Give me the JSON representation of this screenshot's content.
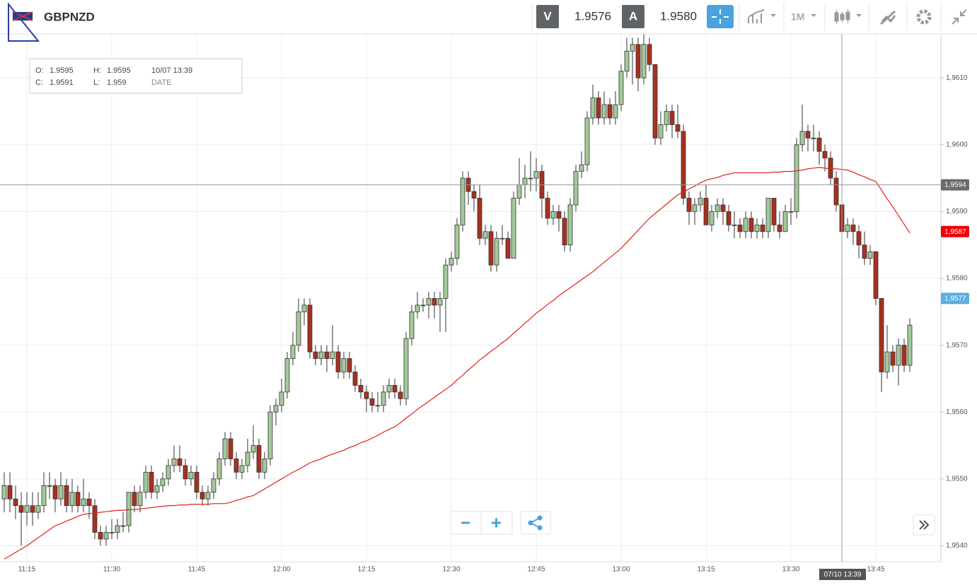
{
  "header": {
    "symbol": "GBPNZD",
    "bid_label": "V",
    "bid": "1.9576",
    "ask_label": "A",
    "ask": "1.9580",
    "period": "1M"
  },
  "info": {
    "open_label": "O:",
    "open": "1.9595",
    "high_label": "H:",
    "high": "1.9595",
    "time": "10/07 13:39",
    "close_label": "C:",
    "close": "1.9591",
    "low_label": "L:",
    "low": "1.959",
    "date_label": "DATE"
  },
  "chart_data": {
    "type": "candlestick",
    "categories": [
      null,
      null,
      null,
      null,
      "11:15",
      null,
      null,
      null,
      null,
      null,
      null,
      null,
      null,
      null,
      null,
      null,
      null,
      null,
      null,
      "11:30",
      null,
      null,
      null,
      null,
      null,
      null,
      null,
      null,
      null,
      null,
      null,
      null,
      null,
      null,
      "11:45",
      null,
      null,
      null,
      null,
      null,
      null,
      null,
      null,
      null,
      null,
      null,
      null,
      null,
      null,
      "12:00",
      null,
      null,
      null,
      null,
      null,
      null,
      null,
      null,
      null,
      null,
      null,
      null,
      null,
      null,
      "12:15",
      null,
      null,
      null,
      null,
      null,
      null,
      null,
      null,
      null,
      null,
      null,
      null,
      null,
      null,
      "12:30",
      null,
      null,
      null,
      null,
      null,
      null,
      null,
      null,
      null,
      null,
      null,
      null,
      null,
      null,
      "12:45",
      null,
      null,
      null,
      null,
      null,
      null,
      null,
      null,
      null,
      null,
      null,
      null,
      null,
      null,
      "13:00",
      null,
      null,
      null,
      null,
      null,
      null,
      null,
      null,
      null,
      null,
      null,
      null,
      null,
      null,
      "13:15",
      null,
      null,
      null,
      null,
      null,
      null,
      null,
      null,
      null,
      null,
      null,
      null,
      null,
      null,
      "13:30",
      null,
      null,
      null,
      null,
      null,
      null,
      null,
      null,
      null,
      null,
      null,
      null,
      null,
      null,
      "13:45",
      null,
      null,
      null,
      null,
      null,
      null
    ],
    "ohlc": [
      [
        1.9547,
        1.9551,
        1.9545,
        1.9549
      ],
      [
        1.9549,
        1.9551,
        1.9545,
        1.9547
      ],
      [
        1.9547,
        1.9549,
        1.9544,
        1.9546
      ],
      [
        1.9546,
        1.9548,
        1.954,
        1.9545
      ],
      [
        1.9545,
        1.9548,
        1.9543,
        1.9546
      ],
      [
        1.9546,
        1.9548,
        1.9543,
        1.9545
      ],
      [
        1.9545,
        1.9548,
        1.9544,
        1.9546
      ],
      [
        1.9546,
        1.9551,
        1.9545,
        1.9549
      ],
      [
        1.9549,
        1.9551,
        1.9547,
        1.9549
      ],
      [
        1.9549,
        1.955,
        1.9545,
        1.9547
      ],
      [
        1.9547,
        1.9551,
        1.9546,
        1.9549
      ],
      [
        1.9549,
        1.955,
        1.9545,
        1.9546
      ],
      [
        1.9546,
        1.955,
        1.9545,
        1.9548
      ],
      [
        1.9548,
        1.9549,
        1.9545,
        1.9546
      ],
      [
        1.9546,
        1.955,
        1.9545,
        1.9547
      ],
      [
        1.9547,
        1.9548,
        1.9544,
        1.9546
      ],
      [
        1.9546,
        1.9547,
        1.9541,
        1.9542
      ],
      [
        1.9542,
        1.9543,
        1.954,
        1.9541
      ],
      [
        1.9541,
        1.9543,
        1.954,
        1.9542
      ],
      [
        1.9542,
        1.9544,
        1.9541,
        1.9542
      ],
      [
        1.9542,
        1.9544,
        1.9541,
        1.9543
      ],
      [
        1.9543,
        1.9545,
        1.9542,
        1.9543
      ],
      [
        1.9543,
        1.9548,
        1.9542,
        1.9548
      ],
      [
        1.9548,
        1.9549,
        1.9545,
        1.9546
      ],
      [
        1.9546,
        1.9549,
        1.9545,
        1.9548
      ],
      [
        1.9548,
        1.9552,
        1.9547,
        1.9551
      ],
      [
        1.9551,
        1.9552,
        1.9547,
        1.9548
      ],
      [
        1.9548,
        1.955,
        1.9547,
        1.9549
      ],
      [
        1.9549,
        1.9551,
        1.9548,
        1.955
      ],
      [
        1.955,
        1.9553,
        1.9549,
        1.9552
      ],
      [
        1.9552,
        1.9555,
        1.9551,
        1.9553
      ],
      [
        1.9553,
        1.9555,
        1.9551,
        1.9552
      ],
      [
        1.9552,
        1.9553,
        1.9549,
        1.955
      ],
      [
        1.955,
        1.9552,
        1.9549,
        1.9551
      ],
      [
        1.9551,
        1.9552,
        1.9547,
        1.9548
      ],
      [
        1.9548,
        1.9549,
        1.9546,
        1.9547
      ],
      [
        1.9547,
        1.9549,
        1.9546,
        1.9548
      ],
      [
        1.9548,
        1.9551,
        1.9547,
        1.955
      ],
      [
        1.955,
        1.9554,
        1.9549,
        1.9553
      ],
      [
        1.9553,
        1.9557,
        1.9552,
        1.9556
      ],
      [
        1.9556,
        1.9557,
        1.9552,
        1.9553
      ],
      [
        1.9553,
        1.9554,
        1.955,
        1.9551
      ],
      [
        1.9551,
        1.9553,
        1.955,
        1.9552
      ],
      [
        1.9552,
        1.9556,
        1.9551,
        1.9554
      ],
      [
        1.9554,
        1.9558,
        1.9553,
        1.9555
      ],
      [
        1.9555,
        1.9556,
        1.955,
        1.9551
      ],
      [
        1.9551,
        1.9554,
        1.955,
        1.9553
      ],
      [
        1.9553,
        1.9561,
        1.9552,
        1.956
      ],
      [
        1.956,
        1.9562,
        1.9558,
        1.9561
      ],
      [
        1.9561,
        1.9565,
        1.956,
        1.9563
      ],
      [
        1.9563,
        1.9569,
        1.9562,
        1.9568
      ],
      [
        1.9568,
        1.9572,
        1.9567,
        1.957
      ],
      [
        1.957,
        1.9577,
        1.9569,
        1.9575
      ],
      [
        1.9575,
        1.9577,
        1.9573,
        1.9576
      ],
      [
        1.9576,
        1.9577,
        1.9568,
        1.9569
      ],
      [
        1.9569,
        1.957,
        1.9567,
        1.9568
      ],
      [
        1.9568,
        1.957,
        1.9567,
        1.9569
      ],
      [
        1.9569,
        1.957,
        1.9566,
        1.9568
      ],
      [
        1.9568,
        1.9573,
        1.9567,
        1.9569
      ],
      [
        1.9569,
        1.957,
        1.9565,
        1.9566
      ],
      [
        1.9566,
        1.9569,
        1.9565,
        1.9568
      ],
      [
        1.9568,
        1.9569,
        1.9565,
        1.9566
      ],
      [
        1.9566,
        1.9567,
        1.9563,
        1.9564
      ],
      [
        1.9564,
        1.9565,
        1.9562,
        1.9563
      ],
      [
        1.9563,
        1.9564,
        1.956,
        1.9562
      ],
      [
        1.9562,
        1.9563,
        1.956,
        1.9561
      ],
      [
        1.9561,
        1.9563,
        1.956,
        1.9561
      ],
      [
        1.9561,
        1.9564,
        1.956,
        1.9563
      ],
      [
        1.9563,
        1.9565,
        1.9562,
        1.9564
      ],
      [
        1.9564,
        1.9565,
        1.9562,
        1.9563
      ],
      [
        1.9563,
        1.9564,
        1.9561,
        1.9562
      ],
      [
        1.9562,
        1.9572,
        1.9561,
        1.9571
      ],
      [
        1.9571,
        1.9576,
        1.957,
        1.9575
      ],
      [
        1.9575,
        1.9578,
        1.9574,
        1.9576
      ],
      [
        1.9576,
        1.9577,
        1.9575,
        1.9576
      ],
      [
        1.9576,
        1.9578,
        1.9574,
        1.9577
      ],
      [
        1.9577,
        1.9578,
        1.9574,
        1.9576
      ],
      [
        1.9576,
        1.9578,
        1.9572,
        1.9577
      ],
      [
        1.9577,
        1.9583,
        1.9572,
        1.9582
      ],
      [
        1.9582,
        1.9584,
        1.9581,
        1.9583
      ],
      [
        1.9583,
        1.9589,
        1.9582,
        1.9588
      ],
      [
        1.9588,
        1.9596,
        1.9587,
        1.9595
      ],
      [
        1.9595,
        1.9596,
        1.9591,
        1.9593
      ],
      [
        1.9593,
        1.9594,
        1.959,
        1.9592
      ],
      [
        1.9592,
        1.9594,
        1.9585,
        1.9586
      ],
      [
        1.9586,
        1.9588,
        1.9585,
        1.9587
      ],
      [
        1.9587,
        1.9588,
        1.9581,
        1.9582
      ],
      [
        1.9582,
        1.9587,
        1.9581,
        1.9586
      ],
      [
        1.9586,
        1.9588,
        1.9585,
        1.9586
      ],
      [
        1.9586,
        1.9587,
        1.9583,
        1.9583
      ],
      [
        1.9583,
        1.9593,
        1.9583,
        1.9592
      ],
      [
        1.9592,
        1.9598,
        1.9591,
        1.9594
      ],
      [
        1.9594,
        1.9597,
        1.9592,
        1.9595
      ],
      [
        1.9595,
        1.9599,
        1.9593,
        1.9595
      ],
      [
        1.9595,
        1.9598,
        1.9593,
        1.9596
      ],
      [
        1.9596,
        1.9597,
        1.9589,
        1.9592
      ],
      [
        1.9592,
        1.9593,
        1.9588,
        1.9589
      ],
      [
        1.9589,
        1.9591,
        1.9588,
        1.959
      ],
      [
        1.959,
        1.9591,
        1.9587,
        1.9589
      ],
      [
        1.9589,
        1.959,
        1.9584,
        1.9585
      ],
      [
        1.9585,
        1.9592,
        1.9584,
        1.9591
      ],
      [
        1.9591,
        1.9597,
        1.959,
        1.9596
      ],
      [
        1.9596,
        1.9599,
        1.9595,
        1.9597
      ],
      [
        1.9597,
        1.9605,
        1.9596,
        1.9604
      ],
      [
        1.9604,
        1.9609,
        1.9603,
        1.9607
      ],
      [
        1.9607,
        1.9608,
        1.9603,
        1.9604
      ],
      [
        1.9604,
        1.9608,
        1.9603,
        1.9606
      ],
      [
        1.9606,
        1.9607,
        1.9603,
        1.9604
      ],
      [
        1.9604,
        1.9608,
        1.9603,
        1.9606
      ],
      [
        1.9606,
        1.9612,
        1.9605,
        1.9611
      ],
      [
        1.9611,
        1.9616,
        1.961,
        1.9614
      ],
      [
        1.9614,
        1.9616,
        1.9609,
        1.9615
      ],
      [
        1.9615,
        1.9616,
        1.9608,
        1.961
      ],
      [
        1.961,
        1.9617,
        1.9609,
        1.9615
      ],
      [
        1.9615,
        1.9616,
        1.9611,
        1.9612
      ],
      [
        1.9612,
        1.9612,
        1.96,
        1.9601
      ],
      [
        1.9601,
        1.9605,
        1.96,
        1.9603
      ],
      [
        1.9603,
        1.9606,
        1.9602,
        1.9605
      ],
      [
        1.9605,
        1.9606,
        1.9601,
        1.9603
      ],
      [
        1.9603,
        1.9606,
        1.9601,
        1.9602
      ],
      [
        1.9602,
        1.9603,
        1.9591,
        1.9592
      ],
      [
        1.9592,
        1.9593,
        1.9588,
        1.959
      ],
      [
        1.959,
        1.9592,
        1.9588,
        1.9591
      ],
      [
        1.9591,
        1.9593,
        1.959,
        1.9592
      ],
      [
        1.9592,
        1.9594,
        1.9588,
        1.9588
      ],
      [
        1.9588,
        1.9591,
        1.9587,
        1.959
      ],
      [
        1.959,
        1.9592,
        1.9589,
        1.9591
      ],
      [
        1.9591,
        1.9592,
        1.9588,
        1.959
      ],
      [
        1.959,
        1.9591,
        1.9587,
        1.9588
      ],
      [
        1.9588,
        1.959,
        1.9586,
        1.9588
      ],
      [
        1.9588,
        1.9589,
        1.9586,
        1.9587
      ],
      [
        1.9587,
        1.959,
        1.9586,
        1.9589
      ],
      [
        1.9589,
        1.959,
        1.9586,
        1.9587
      ],
      [
        1.9587,
        1.9589,
        1.9586,
        1.9588
      ],
      [
        1.9588,
        1.9589,
        1.9586,
        1.9587
      ],
      [
        1.9587,
        1.9592,
        1.9586,
        1.9592
      ],
      [
        1.9592,
        1.9592,
        1.9587,
        1.9588
      ],
      [
        1.9588,
        1.959,
        1.9586,
        1.9587
      ],
      [
        1.9587,
        1.9591,
        1.9587,
        1.959
      ],
      [
        1.959,
        1.9592,
        1.9588,
        1.959
      ],
      [
        1.959,
        1.9601,
        1.9589,
        1.96
      ],
      [
        1.96,
        1.9606,
        1.9599,
        1.9602
      ],
      [
        1.9602,
        1.9603,
        1.9599,
        1.9601
      ],
      [
        1.9601,
        1.9603,
        1.9599,
        1.9601
      ],
      [
        1.9601,
        1.9602,
        1.9597,
        1.9599
      ],
      [
        1.9599,
        1.96,
        1.9596,
        1.9598
      ],
      [
        1.9598,
        1.9599,
        1.9594,
        1.9595
      ],
      [
        1.9595,
        1.9596,
        1.959,
        1.9591
      ],
      [
        1.9591,
        1.9592,
        1.9586,
        1.9587
      ],
      [
        1.9587,
        1.9589,
        1.9586,
        1.9588
      ],
      [
        1.9588,
        1.9589,
        1.9585,
        1.9587
      ],
      [
        1.9587,
        1.9588,
        1.9583,
        1.9585
      ],
      [
        1.9585,
        1.9587,
        1.9582,
        1.9583
      ],
      [
        1.9583,
        1.9585,
        1.9582,
        1.9584
      ],
      [
        1.9584,
        1.9584,
        1.9576,
        1.9577
      ],
      [
        1.9577,
        1.9577,
        1.9563,
        1.9566
      ],
      [
        1.9566,
        1.9573,
        1.9565,
        1.9569
      ],
      [
        1.9569,
        1.957,
        1.9566,
        1.9567
      ],
      [
        1.9567,
        1.9571,
        1.9564,
        1.957
      ],
      [
        1.957,
        1.9571,
        1.9566,
        1.9567
      ],
      [
        1.9567,
        1.9574,
        1.9566,
        1.9573
      ]
    ],
    "up_color": "#a3c99a",
    "down_color": "#a8301e",
    "ma": {
      "color": "#e0201a",
      "values": [
        1.9538,
        1.95385,
        1.9539,
        1.95395,
        1.954,
        1.95406,
        1.95412,
        1.95418,
        1.95424,
        1.9543,
        1.95433,
        1.95437,
        1.9544,
        1.95444,
        1.95447,
        1.95448,
        1.95449,
        1.9545,
        1.95451,
        1.95452,
        1.95453,
        1.95453,
        1.95454,
        1.95454,
        1.95455,
        1.95456,
        1.95457,
        1.95458,
        1.95459,
        1.9546,
        1.9546,
        1.95461,
        1.95461,
        1.95462,
        1.95462,
        1.95462,
        1.95462,
        1.95463,
        1.95463,
        1.95463,
        1.95465,
        1.95468,
        1.9547,
        1.95473,
        1.95475,
        1.9548,
        1.95485,
        1.9549,
        1.95495,
        1.955,
        1.95505,
        1.9551,
        1.95514,
        1.95519,
        1.95524,
        1.95527,
        1.9553,
        1.95534,
        1.95537,
        1.9554,
        1.95543,
        1.95547,
        1.9555,
        1.95554,
        1.95557,
        1.95561,
        1.95565,
        1.9557,
        1.95574,
        1.95578,
        1.95584,
        1.95591,
        1.95597,
        1.95604,
        1.9561,
        1.95616,
        1.95622,
        1.95628,
        1.95634,
        1.9564,
        1.95648,
        1.95655,
        1.95663,
        1.9567,
        1.95678,
        1.95684,
        1.95691,
        1.95697,
        1.95704,
        1.9571,
        1.95718,
        1.95725,
        1.95733,
        1.9574,
        1.95748,
        1.95754,
        1.95761,
        1.95767,
        1.95774,
        1.9578,
        1.95786,
        1.95792,
        1.95798,
        1.95804,
        1.9581,
        1.95817,
        1.95824,
        1.95831,
        1.95838,
        1.95845,
        1.95854,
        1.95863,
        1.95872,
        1.95881,
        1.9589,
        1.95897,
        1.95904,
        1.95911,
        1.95918,
        1.95925,
        1.95929,
        1.95934,
        1.95938,
        1.95943,
        1.95947,
        1.95949,
        1.95951,
        1.95954,
        1.95956,
        1.95958,
        1.95958,
        1.95958,
        1.95958,
        1.95958,
        1.95958,
        1.95958,
        1.95959,
        1.95959,
        1.9596,
        1.9596,
        1.95961,
        1.95962,
        1.95964,
        1.95965,
        1.95966,
        1.95965,
        1.95964,
        1.95964,
        1.95963,
        1.95962,
        1.95959,
        1.95955,
        1.95952,
        1.95948,
        1.95945,
        1.95932,
        1.95919,
        1.95907,
        1.95894,
        1.95881,
        1.95868
      ]
    },
    "ylim": [
      1.9537,
      1.9617
    ],
    "yticks": [
      {
        "value": 1.954,
        "label": "1,9540"
      },
      {
        "value": 1.955,
        "label": "1,9550"
      },
      {
        "value": 1.956,
        "label": "1,9560"
      },
      {
        "value": 1.957,
        "label": "1,9570"
      },
      {
        "value": 1.958,
        "label": "1,9580"
      },
      {
        "value": 1.959,
        "label": "1,9590"
      },
      {
        "value": 1.96,
        "label": "1,9600"
      },
      {
        "value": 1.961,
        "label": "1,9610"
      }
    ],
    "grid": true,
    "price_tags": [
      {
        "value": 1.9594,
        "label": "1,9594",
        "color": "#6b6b6b"
      },
      {
        "value": 1.9587,
        "label": "1,9587",
        "color": "#ee0000"
      },
      {
        "value": 1.9577,
        "label": "1,9577",
        "color": "#5aaee0"
      }
    ],
    "crosshair_time": "07/10 13:39"
  }
}
